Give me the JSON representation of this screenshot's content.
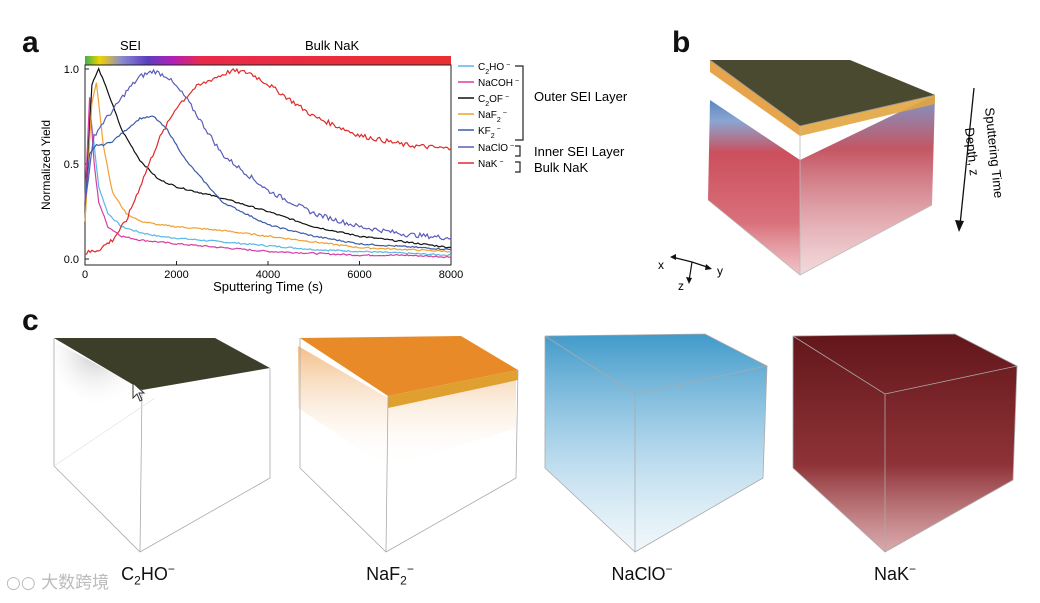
{
  "panels": {
    "a": "a",
    "b": "b",
    "c": "c"
  },
  "chart_data": {
    "type": "line",
    "xlabel": "Sputtering Time (s)",
    "ylabel": "Normalized Yield",
    "xlim": [
      0,
      8000
    ],
    "ylim": [
      0,
      1.0
    ],
    "xticks": [
      0,
      2000,
      4000,
      6000,
      8000
    ],
    "yticks": [
      0.0,
      0.5,
      1.0
    ],
    "region_labels": {
      "sei": "SEI",
      "bulk": "Bulk NaK"
    },
    "groups": {
      "outer": "Outer SEI Layer",
      "inner": "Inner SEI Layer",
      "bulk": "Bulk NaK"
    },
    "series": [
      {
        "name_main": "C",
        "name_sub": "2",
        "name_rest": "HO",
        "charge": "−",
        "color": "#5ab7e6",
        "group": "outer",
        "x": [
          0,
          100,
          200,
          300,
          500,
          800,
          1200,
          1600,
          2000,
          3000,
          4000,
          5000,
          6000,
          7000,
          8000
        ],
        "y": [
          0.3,
          0.8,
          0.6,
          0.38,
          0.24,
          0.17,
          0.14,
          0.12,
          0.11,
          0.09,
          0.07,
          0.05,
          0.04,
          0.03,
          0.02
        ]
      },
      {
        "name_main": "NaCOH",
        "name_sub": "",
        "name_rest": "",
        "charge": "−",
        "color": "#d63da4",
        "group": "outer",
        "x": [
          0,
          100,
          200,
          300,
          500,
          800,
          1200,
          1600,
          2000,
          3000,
          4000,
          5000,
          6000,
          7000,
          8000
        ],
        "y": [
          0.3,
          0.85,
          0.5,
          0.3,
          0.17,
          0.12,
          0.1,
          0.09,
          0.08,
          0.06,
          0.04,
          0.03,
          0.02,
          0.02,
          0.01
        ]
      },
      {
        "name_main": "C",
        "name_sub": "2",
        "name_rest": "OF",
        "charge": "−",
        "color": "#111111",
        "group": "outer",
        "x": [
          0,
          150,
          300,
          500,
          800,
          1200,
          1600,
          2000,
          2500,
          3000,
          4000,
          5000,
          6000,
          7000,
          8000
        ],
        "y": [
          0.2,
          0.92,
          1.0,
          0.88,
          0.68,
          0.52,
          0.42,
          0.38,
          0.35,
          0.32,
          0.25,
          0.17,
          0.12,
          0.09,
          0.06
        ]
      },
      {
        "name_main": "NaF",
        "name_sub": "2",
        "name_rest": "",
        "charge": "−",
        "color": "#f0a030",
        "group": "outer",
        "x": [
          0,
          150,
          250,
          400,
          600,
          900,
          1200,
          1600,
          2000,
          3000,
          4000,
          5000,
          6000,
          7000,
          8000
        ],
        "y": [
          0.2,
          0.82,
          0.93,
          0.6,
          0.35,
          0.24,
          0.2,
          0.18,
          0.17,
          0.15,
          0.12,
          0.09,
          0.06,
          0.05,
          0.04
        ]
      },
      {
        "name_main": "KF",
        "name_sub": "2",
        "name_rest": "",
        "charge": "−",
        "color": "#3a5aa6",
        "group": "outer",
        "x": [
          0,
          100,
          250,
          400,
          600,
          900,
          1200,
          1500,
          1800,
          2200,
          3000,
          4000,
          5000,
          6000,
          8000
        ],
        "y": [
          0.3,
          0.55,
          0.6,
          0.6,
          0.62,
          0.68,
          0.74,
          0.75,
          0.68,
          0.52,
          0.3,
          0.18,
          0.12,
          0.08,
          0.05
        ]
      },
      {
        "name_main": "NaClO",
        "name_sub": "",
        "name_rest": "",
        "charge": "−",
        "color": "#5a5db8",
        "group": "inner",
        "x": [
          0,
          200,
          400,
          600,
          900,
          1200,
          1500,
          1800,
          2200,
          2600,
          3000,
          4000,
          5000,
          6000,
          7000,
          8000
        ],
        "y": [
          0.3,
          0.65,
          0.72,
          0.78,
          0.88,
          0.96,
          0.99,
          0.96,
          0.85,
          0.7,
          0.55,
          0.36,
          0.24,
          0.17,
          0.13,
          0.11
        ]
      },
      {
        "name_main": "NaK",
        "name_sub": "",
        "name_rest": "",
        "charge": "−",
        "color": "#e02a2a",
        "group": "bulk",
        "x": [
          0,
          300,
          600,
          900,
          1200,
          1600,
          2000,
          2400,
          2800,
          3200,
          3600,
          4000,
          5000,
          6000,
          7000,
          8000
        ],
        "y": [
          0.03,
          0.05,
          0.1,
          0.2,
          0.38,
          0.62,
          0.8,
          0.9,
          0.95,
          0.99,
          0.98,
          0.92,
          0.75,
          0.65,
          0.6,
          0.58
        ]
      }
    ]
  },
  "cube_b": {
    "axis_x": "x",
    "axis_y": "y",
    "axis_z": "z",
    "arrow_label_1": "Sputtering Time",
    "arrow_label_2": "Depth, z"
  },
  "cubes_c": [
    {
      "main": "C",
      "sub": "2",
      "rest": "HO",
      "charge": "−",
      "color": "#3d3e2a"
    },
    {
      "main": "NaF",
      "sub": "2",
      "rest": "",
      "charge": "−",
      "color": "#e88a28"
    },
    {
      "main": "NaClO",
      "sub": "",
      "rest": "",
      "charge": "−",
      "color": "#2b8fc4"
    },
    {
      "main": "NaK",
      "sub": "",
      "rest": "",
      "charge": "−",
      "color": "#7a0f14"
    }
  ],
  "watermark": "大数跨境",
  "colors": {
    "gradient": [
      "#3bb34a",
      "#f2d300",
      "#8a8ad0",
      "#5a3fbf",
      "#b11fb8",
      "#e82a4a",
      "#e83030"
    ]
  }
}
